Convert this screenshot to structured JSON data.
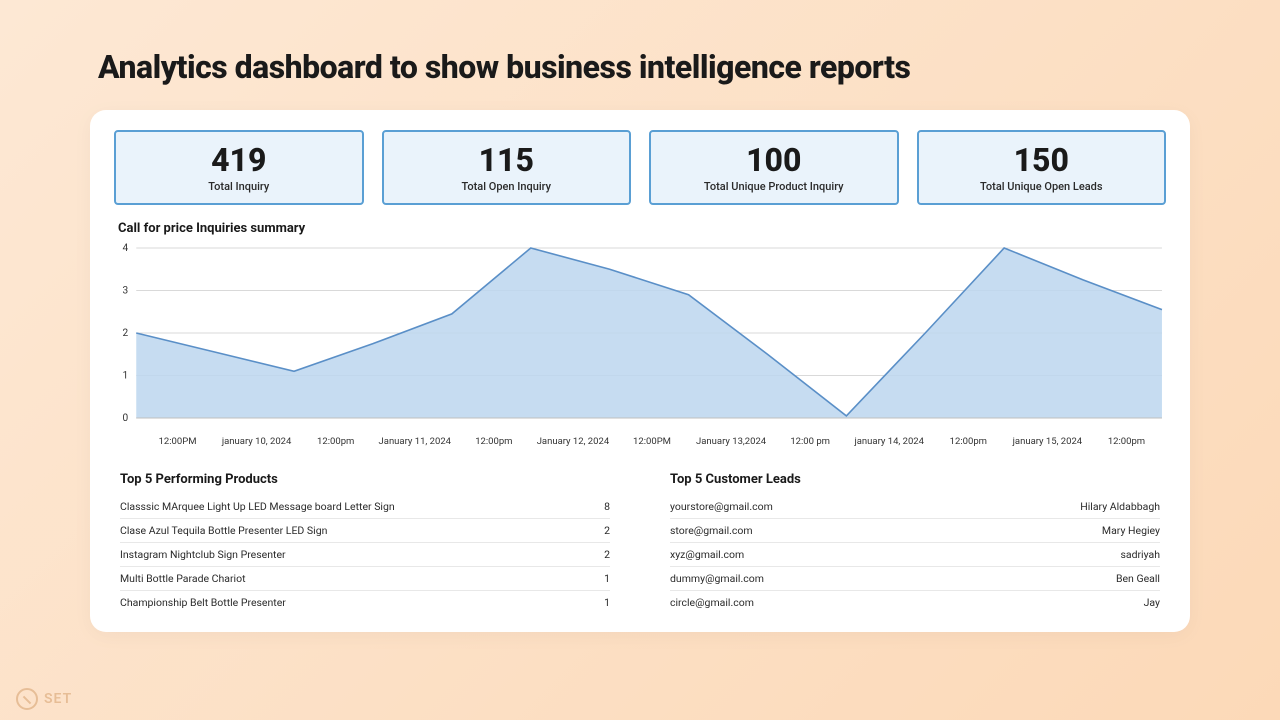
{
  "page_title": "Analytics dashboard to show business intelligence reports",
  "stats": [
    {
      "value": "419",
      "label": "Total Inquiry"
    },
    {
      "value": "115",
      "label": "Total Open Inquiry"
    },
    {
      "value": "100",
      "label": "Total Unique Product Inquiry"
    },
    {
      "value": "150",
      "label": "Total Unique Open Leads"
    }
  ],
  "chart": {
    "title": "Call for price Inquiries summary",
    "type": "area",
    "y_ticks": [
      0,
      1,
      2,
      3,
      4
    ],
    "ylim": [
      0,
      4
    ],
    "x_labels": [
      "12:00PM",
      "january 10, 2024",
      "12:00pm",
      "January 11, 2024",
      "12:00pm",
      "January 12, 2024",
      "12:00PM",
      "January 13,2024",
      "12:00 pm",
      "january 14, 2024",
      "12:00pm",
      "january 15, 2024",
      "12:00pm"
    ],
    "values": [
      2.0,
      1.55,
      1.1,
      1.75,
      2.45,
      4.0,
      3.5,
      2.9,
      1.5,
      0.05,
      2.0,
      4.0,
      3.25,
      2.55
    ],
    "line_color": "#5a8fc7",
    "fill_color": "#bcd6ef",
    "fill_opacity": 0.85,
    "grid_color": "#d9d9d9",
    "axis_color": "#bfbfbf",
    "tick_font_size": 10,
    "line_width": 1.6
  },
  "products": {
    "title": "Top 5 Performing Products",
    "rows": [
      {
        "name": "Classsic MArquee Light Up LED Message board Letter Sign",
        "count": "8"
      },
      {
        "name": "Clase Azul Tequila Bottle Presenter LED Sign",
        "count": "2"
      },
      {
        "name": "Instagram Nightclub Sign Presenter",
        "count": "2"
      },
      {
        "name": " Multi Bottle Parade Chariot",
        "count": "1"
      },
      {
        "name": "Championship Belt Bottle Presenter",
        "count": "1"
      }
    ]
  },
  "leads": {
    "title": "Top 5 Customer Leads",
    "rows": [
      {
        "email": "yourstore@gmail.com",
        "name": "Hilary Aldabbagh"
      },
      {
        "email": "store@gmail.com",
        "name": "Mary Hegiey"
      },
      {
        "email": "xyz@gmail.com",
        "name": "sadriyah"
      },
      {
        "email": "dummy@gmail.com",
        "name": "Ben Geall"
      },
      {
        "email": "circle@gmail.com",
        "name": "Jay"
      }
    ]
  },
  "watermark_text": "SET",
  "colors": {
    "page_bg_top": "#fde8d4",
    "page_bg_bottom": "#fcd9b8",
    "card_bg": "#ffffff",
    "stat_border": "#5a9fd4",
    "stat_bg": "#eaf3fb"
  }
}
